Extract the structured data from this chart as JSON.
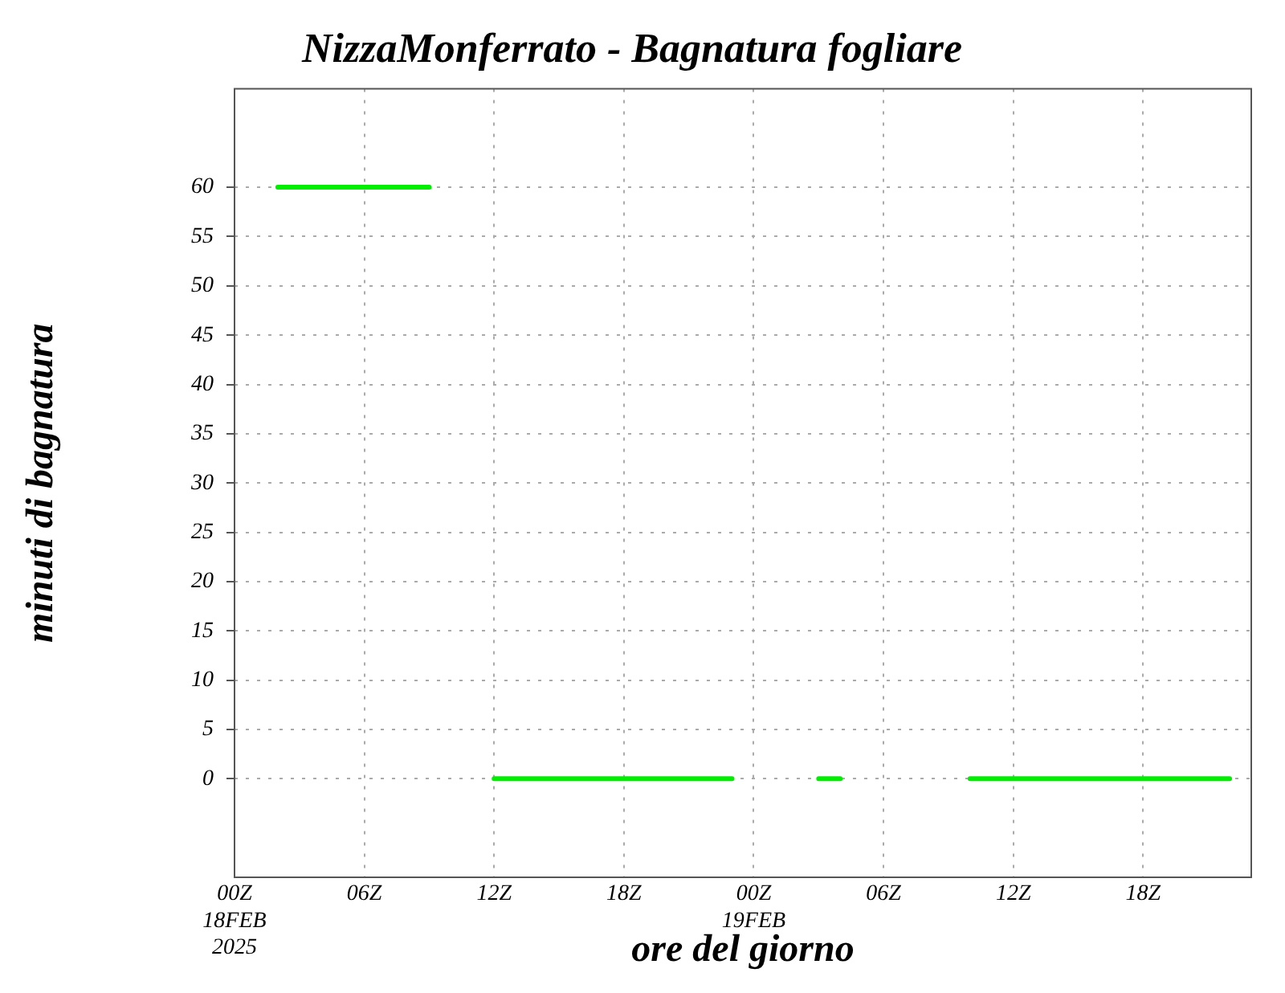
{
  "chart_data": {
    "type": "line",
    "title": "NizzaMonferrato - Bagnatura fogliare",
    "xlabel": "ore del giorno",
    "ylabel": "minuti di bagnatura",
    "x": [
      "2025-02-18T02:00",
      "2025-02-18T03:00",
      "2025-02-18T04:00",
      "2025-02-18T05:00",
      "2025-02-18T06:00",
      "2025-02-18T07:00",
      "2025-02-18T08:00",
      "2025-02-18T09:00",
      "2025-02-18T10:00",
      "2025-02-18T11:00",
      "2025-02-18T12:00",
      "2025-02-18T13:00",
      "2025-02-18T14:00",
      "2025-02-18T15:00",
      "2025-02-18T16:00",
      "2025-02-18T17:00",
      "2025-02-18T18:00",
      "2025-02-18T19:00",
      "2025-02-18T20:00",
      "2025-02-18T21:00",
      "2025-02-18T22:00",
      "2025-02-18T23:00",
      "2025-02-19T00:00",
      "2025-02-19T01:00",
      "2025-02-19T02:00",
      "2025-02-19T03:00",
      "2025-02-19T04:00",
      "2025-02-19T05:00",
      "2025-02-19T06:00",
      "2025-02-19T07:00",
      "2025-02-19T08:00",
      "2025-02-19T09:00",
      "2025-02-19T10:00",
      "2025-02-19T11:00",
      "2025-02-19T12:00",
      "2025-02-19T13:00",
      "2025-02-19T14:00",
      "2025-02-19T15:00",
      "2025-02-19T16:00",
      "2025-02-19T17:00",
      "2025-02-19T18:00",
      "2025-02-19T19:00",
      "2025-02-19T20:00",
      "2025-02-19T21:00",
      "2025-02-19T22:00"
    ],
    "series": [
      {
        "color": "#00ee00",
        "values": [
          60,
          60,
          60,
          60,
          60,
          60,
          60,
          60,
          null,
          null,
          0,
          0,
          0,
          0,
          0,
          0,
          0,
          0,
          0,
          0,
          0,
          0,
          null,
          null,
          null,
          0,
          0,
          null,
          null,
          null,
          null,
          null,
          0,
          0,
          0,
          0,
          0,
          0,
          0,
          0,
          0,
          0,
          0,
          0,
          0
        ]
      }
    ],
    "xlim": [
      "2025-02-18T00:00",
      "2025-02-19T23:00"
    ],
    "xticks": [
      {
        "value": "2025-02-18T00:00",
        "label": "00Z\n18FEB\n2025"
      },
      {
        "value": "2025-02-18T06:00",
        "label": "06Z"
      },
      {
        "value": "2025-02-18T12:00",
        "label": "12Z"
      },
      {
        "value": "2025-02-18T18:00",
        "label": "18Z"
      },
      {
        "value": "2025-02-19T00:00",
        "label": "00Z\n19FEB"
      },
      {
        "value": "2025-02-19T06:00",
        "label": "06Z"
      },
      {
        "value": "2025-02-19T12:00",
        "label": "12Z"
      },
      {
        "value": "2025-02-19T18:00",
        "label": "18Z"
      }
    ],
    "ylim": [
      -10,
      70
    ],
    "yticks": [
      0,
      5,
      10,
      15,
      20,
      25,
      30,
      35,
      40,
      45,
      50,
      55,
      60
    ],
    "grid": true,
    "marker": "none",
    "line_style": "solid",
    "legend": false
  }
}
